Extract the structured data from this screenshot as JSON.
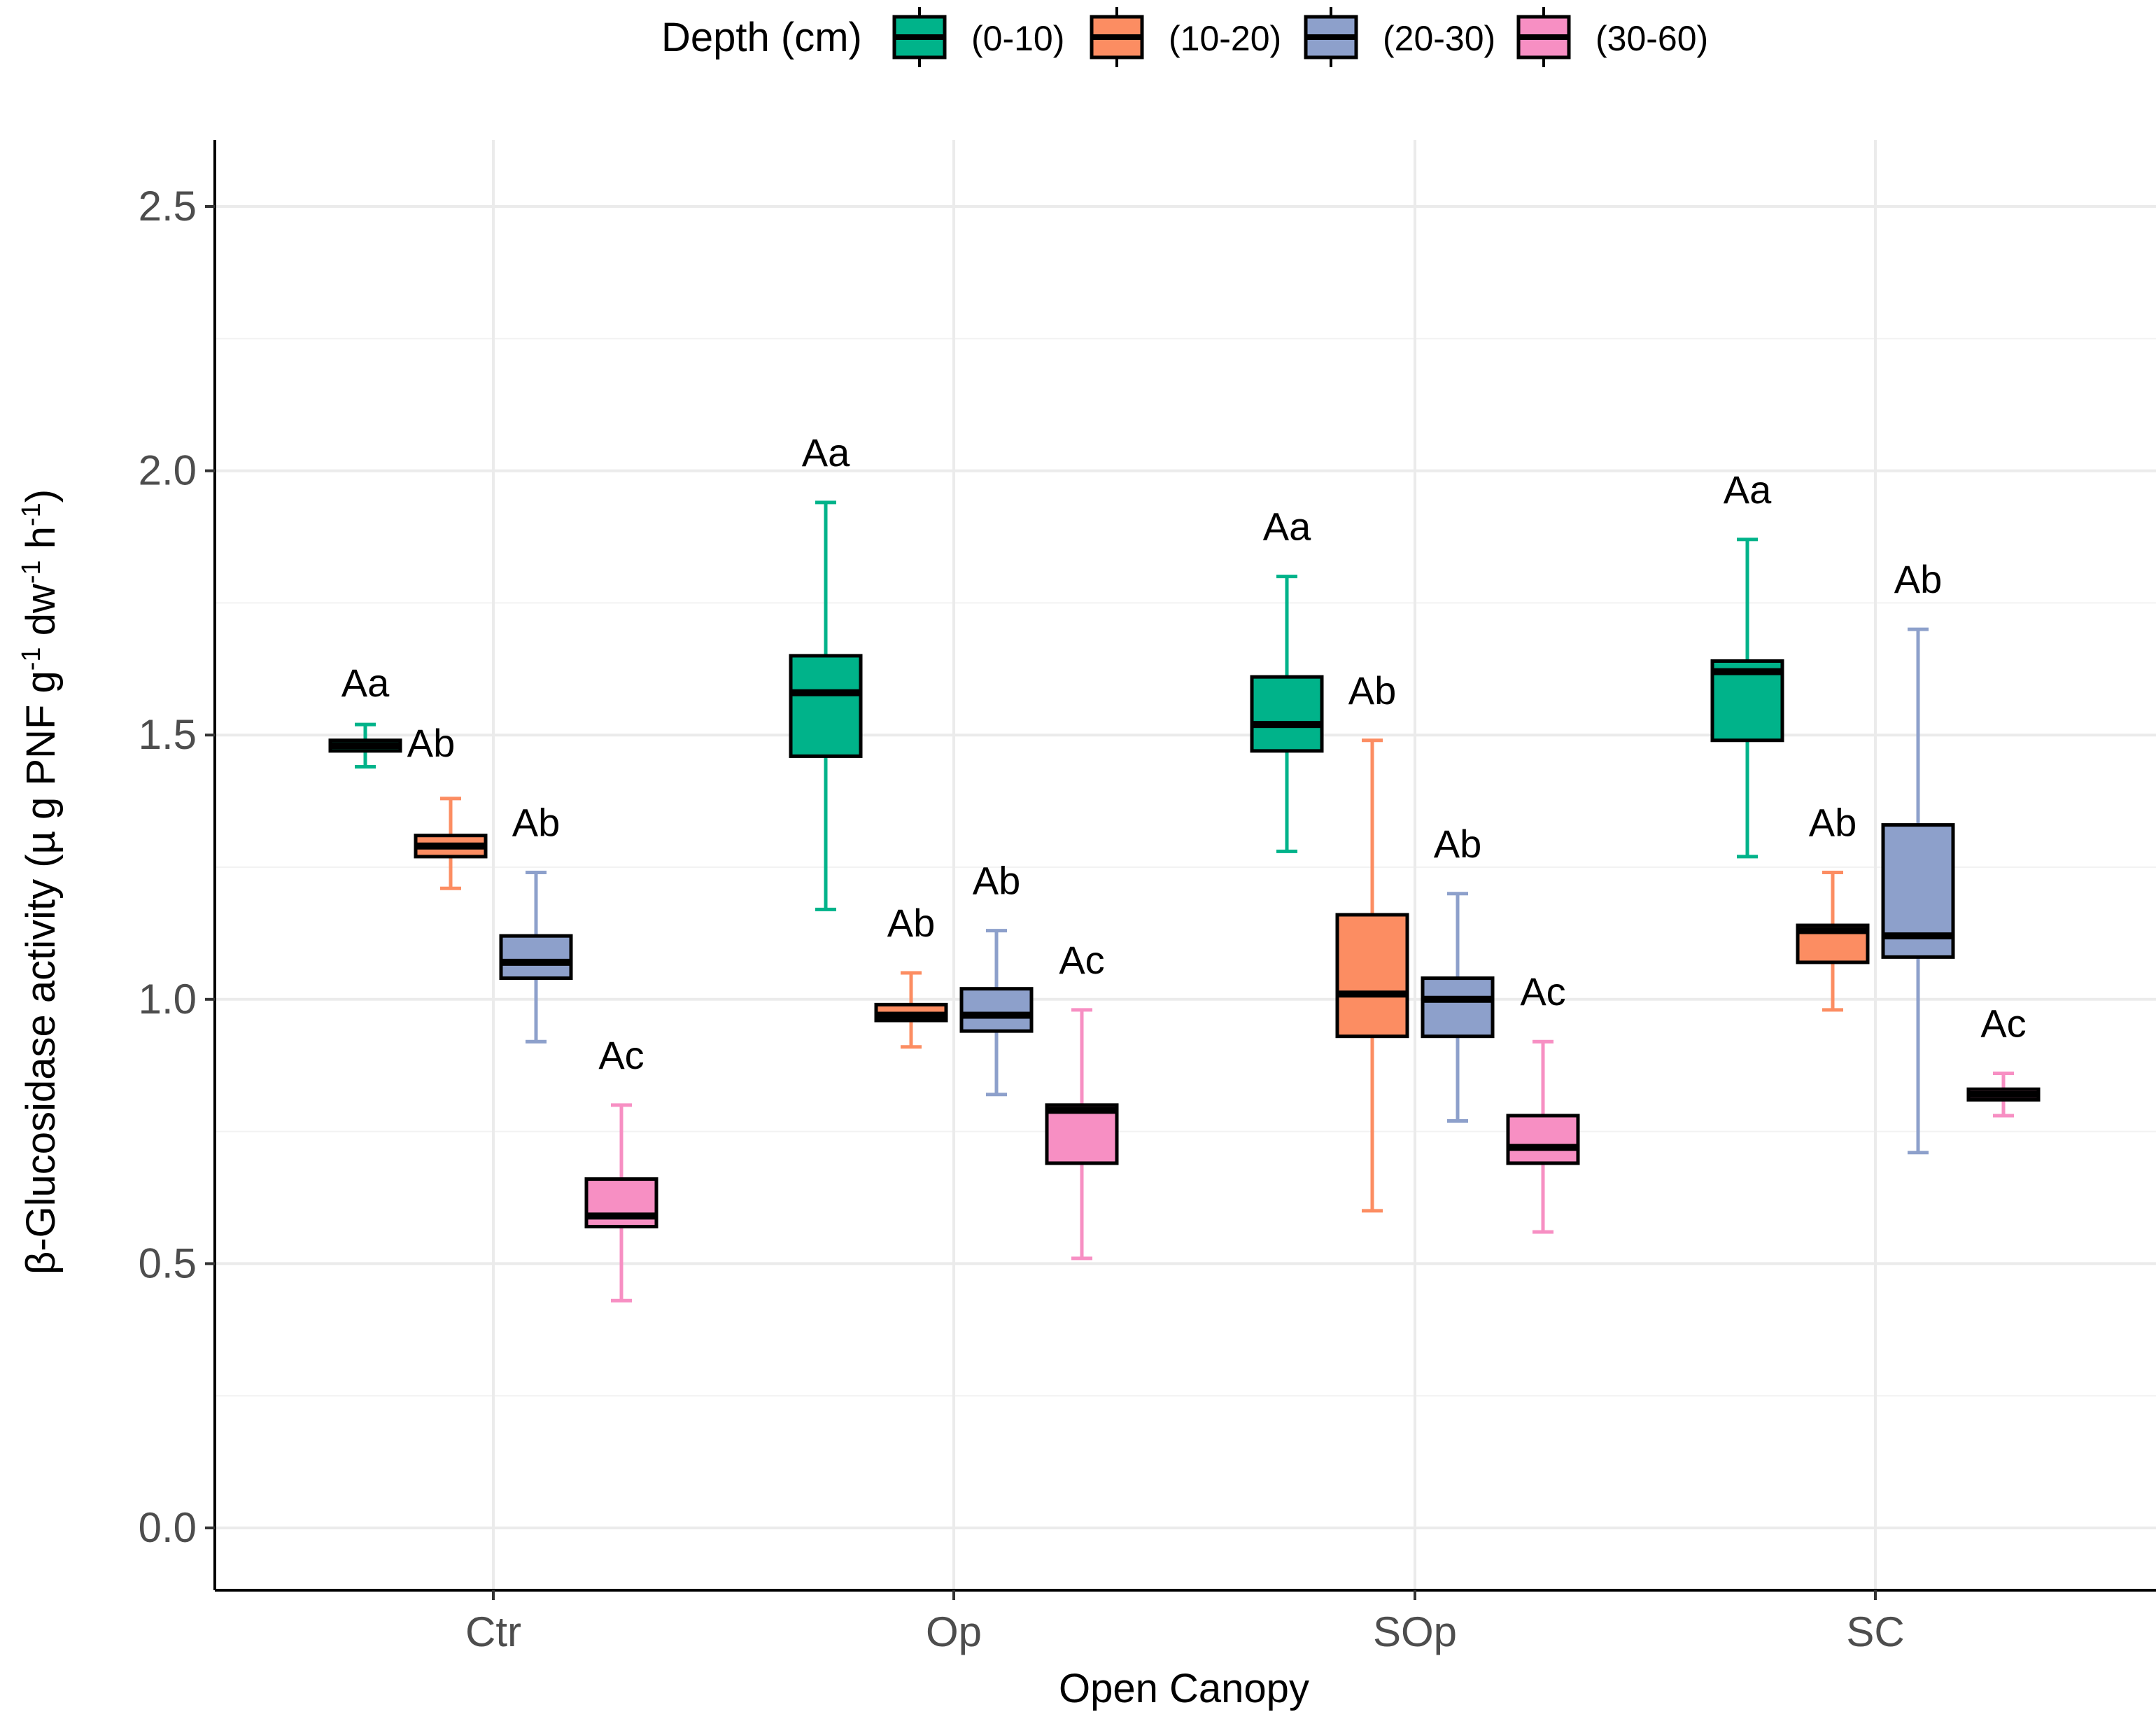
{
  "chart_data": {
    "type": "box",
    "xlabel": "Open Canopy",
    "ylabel_parts": {
      "main": "β-Glucosidase activity (µ g PNF g",
      "sup1": "-1",
      "mid": " dw",
      "sup2": "-1",
      "mid2": " h",
      "sup3": "-1",
      "end": ")"
    },
    "ylim": [
      -0.15,
      2.62
    ],
    "yticks": [
      0.0,
      0.5,
      1.0,
      1.5,
      2.0,
      2.5
    ],
    "ytick_labels": [
      "0.0",
      "0.5",
      "1.0",
      "1.5",
      "2.0",
      "2.5"
    ],
    "grid": true,
    "legend": {
      "title": "Depth (cm)",
      "position": "top",
      "entries": [
        {
          "label": "(0-10)",
          "color": "#00b38a"
        },
        {
          "label": "(10-20)",
          "color": "#fc8d62"
        },
        {
          "label": "(20-30)",
          "color": "#8da0cb"
        },
        {
          "label": "(30-60)",
          "color": "#f78fc3"
        }
      ]
    },
    "categories": [
      "Ctr",
      "Op",
      "SOp",
      "SC"
    ],
    "series": [
      {
        "name": "(0-10)",
        "color": "#00b38a",
        "boxes": [
          {
            "min": 1.44,
            "q1": 1.47,
            "median": 1.48,
            "q3": 1.49,
            "max": 1.52,
            "label": "Aa"
          },
          {
            "min": 1.17,
            "q1": 1.46,
            "median": 1.58,
            "q3": 1.65,
            "max": 1.94,
            "label": "Aa"
          },
          {
            "min": 1.28,
            "q1": 1.47,
            "median": 1.52,
            "q3": 1.61,
            "max": 1.8,
            "label": "Aa"
          },
          {
            "min": 1.27,
            "q1": 1.49,
            "median": 1.62,
            "q3": 1.64,
            "max": 1.87,
            "label": "Aa"
          }
        ]
      },
      {
        "name": "(10-20)",
        "color": "#fc8d62",
        "boxes": [
          {
            "min": 1.21,
            "q1": 1.27,
            "median": 1.29,
            "q3": 1.31,
            "max": 1.38,
            "label": "Ab"
          },
          {
            "min": 0.91,
            "q1": 0.96,
            "median": 0.97,
            "q3": 0.99,
            "max": 1.05,
            "label": "Ab"
          },
          {
            "min": 0.6,
            "q1": 0.93,
            "median": 1.01,
            "q3": 1.16,
            "max": 1.49,
            "label": "Ab"
          },
          {
            "min": 0.98,
            "q1": 1.07,
            "median": 1.13,
            "q3": 1.14,
            "max": 1.24,
            "label": "Ab"
          }
        ]
      },
      {
        "name": "(20-30)",
        "color": "#8da0cb",
        "boxes": [
          {
            "min": 0.92,
            "q1": 1.04,
            "median": 1.07,
            "q3": 1.12,
            "max": 1.24,
            "label": "Ab"
          },
          {
            "min": 0.82,
            "q1": 0.94,
            "median": 0.97,
            "q3": 1.02,
            "max": 1.13,
            "label": "Ab"
          },
          {
            "min": 0.77,
            "q1": 0.93,
            "median": 1.0,
            "q3": 1.04,
            "max": 1.2,
            "label": "Ab"
          },
          {
            "min": 0.71,
            "q1": 1.08,
            "median": 1.12,
            "q3": 1.33,
            "max": 1.7,
            "label": "Ab"
          }
        ]
      },
      {
        "name": "(30-60)",
        "color": "#f78fc3",
        "boxes": [
          {
            "min": 0.43,
            "q1": 0.57,
            "median": 0.59,
            "q3": 0.66,
            "max": 0.8,
            "label": "Ac"
          },
          {
            "min": 0.51,
            "q1": 0.69,
            "median": 0.79,
            "q3": 0.8,
            "max": 0.98,
            "label": "Ac"
          },
          {
            "min": 0.56,
            "q1": 0.69,
            "median": 0.72,
            "q3": 0.78,
            "max": 0.92,
            "label": "Ac"
          },
          {
            "min": 0.78,
            "q1": 0.81,
            "median": 0.82,
            "q3": 0.83,
            "max": 0.86,
            "label": "Ac"
          }
        ]
      }
    ]
  }
}
